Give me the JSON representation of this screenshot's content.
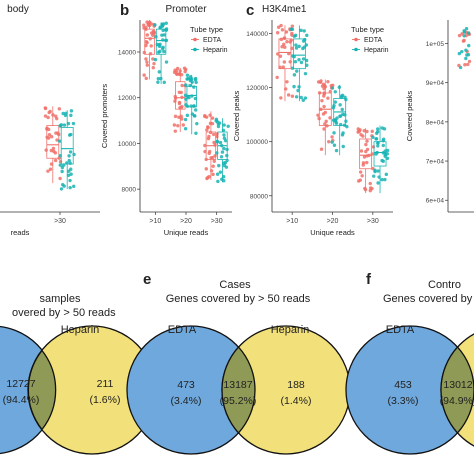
{
  "colors": {
    "edta": "#f07069",
    "heparin": "#17b3b3",
    "box": "#f07069",
    "venn_left": "#6fa8dc",
    "venn_right": "#f2e07a",
    "venn_overlap": "#8e9a55",
    "axis": "#333333"
  },
  "panels_top": [
    {
      "letter": "",
      "title": "body",
      "ylabel": "",
      "xlabel": "reads",
      "yticks": [],
      "xticks": [
        "",
        ">30"
      ],
      "ylim": [
        0,
        1
      ],
      "show_legend": false
    },
    {
      "letter": "b",
      "title": "Promoter",
      "ylabel": "Covered promoters",
      "xlabel": "Unique reads",
      "yticks": [
        "8000",
        "10000",
        "12000",
        "14000"
      ],
      "xticks": [
        ">10",
        ">20",
        ">30"
      ],
      "ylim": [
        7000,
        15400
      ],
      "show_legend": true
    },
    {
      "letter": "c",
      "title": "H3K4me1",
      "ylabel": "Covered peaks",
      "xlabel": "Unique reads",
      "yticks": [
        "80000",
        "100000",
        "120000",
        "140000"
      ],
      "xticks": [
        ">10",
        ">20",
        ">30"
      ],
      "ylim": [
        74000,
        145000
      ],
      "show_legend": true
    },
    {
      "letter": "",
      "title": "",
      "ylabel": "Covered peaks",
      "xlabel": "",
      "yticks": [
        "6e+04",
        "7e+04",
        "8e+04",
        "9e+04",
        "1e+05"
      ],
      "xticks": [],
      "ylim": [
        57000,
        106000
      ],
      "show_legend": false
    }
  ],
  "legend": {
    "title": "Tube type",
    "items": [
      "EDTA",
      "Heparin"
    ]
  },
  "venns": [
    {
      "letter": "",
      "title_line1": "samples",
      "title_line2": "",
      "left_label": "",
      "right_label": "Heparin",
      "left_count": "",
      "left_pct": "",
      "overlap_count": "12727",
      "overlap_pct": "(94.4%)",
      "right_count": "211",
      "right_pct": "(1.6%)"
    },
    {
      "letter": "e",
      "title_line1": "Cases",
      "title_line2": "Genes covered by > 50 reads",
      "left_label": "EDTA",
      "right_label": "Heparin",
      "left_count": "473",
      "left_pct": "(3.4%)",
      "overlap_count": "13187",
      "overlap_pct": "(95.2%)",
      "right_count": "188",
      "right_pct": "(1.4%)"
    },
    {
      "letter": "f",
      "title_line1": "Contro",
      "title_line2": "Genes covered by",
      "left_label": "EDTA",
      "right_label": "",
      "left_count": "453",
      "left_pct": "(3.3%)",
      "overlap_count": "13012",
      "overlap_pct": "(94.9%)",
      "right_count": "",
      "right_pct": ""
    }
  ],
  "venn_partial_title": "overed by > 50 reads",
  "chart_data": [
    {
      "type": "box",
      "title": "Promoter",
      "ylabel": "Covered promoters",
      "xlabel": "Unique reads",
      "categories": [
        ">10",
        ">20",
        ">30"
      ],
      "ylim": [
        7000,
        15400
      ],
      "series": [
        {
          "name": "EDTA",
          "q1": [
            13900,
            11500,
            9300
          ],
          "median": [
            14600,
            12000,
            9900
          ],
          "q3": [
            15000,
            12700,
            10500
          ],
          "min": [
            12800,
            10500,
            8400
          ],
          "max": [
            15400,
            13300,
            11400
          ]
        },
        {
          "name": "Heparin",
          "q1": [
            13900,
            11600,
            9300
          ],
          "median": [
            14500,
            12100,
            9900
          ],
          "q3": [
            15000,
            12500,
            10500
          ],
          "min": [
            12600,
            10400,
            8300
          ],
          "max": [
            15300,
            13000,
            11100
          ]
        }
      ]
    },
    {
      "type": "box",
      "title": "H3K4me1",
      "ylabel": "Covered peaks",
      "xlabel": "Unique reads",
      "categories": [
        ">10",
        ">20",
        ">30"
      ],
      "ylim": [
        74000,
        145000
      ],
      "series": [
        {
          "name": "EDTA",
          "q1": [
            127000,
            106000,
            90000
          ],
          "median": [
            133000,
            112000,
            95000
          ],
          "q3": [
            138000,
            118000,
            101000
          ],
          "min": [
            115000,
            95000,
            81000
          ],
          "max": [
            143000,
            123000,
            105000
          ]
        },
        {
          "name": "Heparin",
          "q1": [
            127000,
            106000,
            91000
          ],
          "median": [
            132000,
            111000,
            96000
          ],
          "q3": [
            138000,
            116000,
            100000
          ],
          "min": [
            115000,
            95000,
            81000
          ],
          "max": [
            143000,
            121000,
            106000
          ]
        }
      ]
    }
  ]
}
